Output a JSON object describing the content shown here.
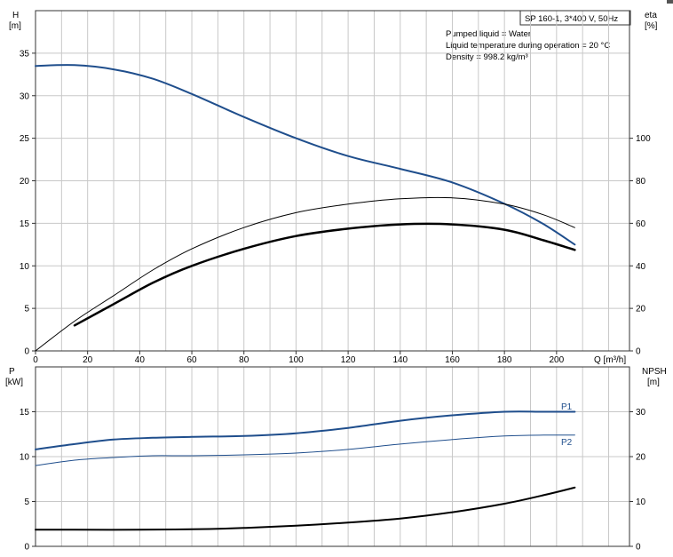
{
  "chart_data": [
    {
      "type": "line",
      "name": "upper",
      "left_axis": {
        "label_line1": "H",
        "label_line2": "[m]",
        "min": 0,
        "max": 40,
        "ticks": [
          0,
          5,
          10,
          15,
          20,
          25,
          30,
          35
        ]
      },
      "right_axis": {
        "label_line1": "eta",
        "label_line2": "[%]",
        "min": 0,
        "max": 160,
        "ticks": [
          0,
          20,
          40,
          60,
          80,
          100
        ]
      },
      "x_axis": {
        "label": "Q [m³/h]",
        "min": 0,
        "max": 228,
        "ticks": [
          0,
          20,
          40,
          60,
          80,
          100,
          120,
          140,
          160,
          180,
          200
        ]
      },
      "title_box": "SP 160-1, 3*400 V, 50Hz",
      "info": [
        "Pumped liquid = Water",
        "Liquid temperature during operation = 20 °C",
        "Density = 998.2 kg/m³"
      ],
      "grid": true,
      "series": [
        {
          "axis": "left",
          "color": "#1f4e8c",
          "width": 2,
          "x": [
            0,
            15,
            30,
            45,
            60,
            80,
            100,
            120,
            140,
            160,
            180,
            195,
            207
          ],
          "y": [
            33.5,
            33.6,
            33.1,
            32.0,
            30.2,
            27.5,
            25.0,
            22.9,
            21.4,
            19.8,
            17.3,
            14.9,
            12.5
          ]
        },
        {
          "axis": "right",
          "color": "#000000",
          "width": 1,
          "x": [
            0,
            15,
            30,
            45,
            60,
            80,
            100,
            120,
            140,
            160,
            180,
            195,
            207
          ],
          "y": [
            0,
            14,
            26,
            38,
            48,
            58,
            65,
            69,
            71.5,
            72,
            69,
            64,
            58
          ]
        },
        {
          "axis": "right",
          "color": "#000000",
          "width": 2.5,
          "x": [
            15,
            30,
            45,
            60,
            80,
            100,
            120,
            140,
            160,
            180,
            195,
            207
          ],
          "y": [
            12,
            22,
            32,
            40,
            48,
            54,
            57.5,
            59.5,
            59.5,
            57,
            52,
            47.5
          ]
        }
      ]
    },
    {
      "type": "line",
      "name": "lower",
      "left_axis": {
        "label_line1": "P",
        "label_line2": "[kW]",
        "min": 0,
        "max": 20,
        "ticks": [
          0,
          5,
          10,
          15
        ]
      },
      "right_axis": {
        "label_line1": "NPSH",
        "label_line2": "[m]",
        "min": 0,
        "max": 40,
        "ticks": [
          0,
          10,
          20,
          30
        ]
      },
      "x_axis": {
        "min": 0,
        "max": 228
      },
      "grid": true,
      "series": [
        {
          "name": "P1",
          "axis": "left",
          "color": "#1f4e8c",
          "width": 2,
          "x": [
            0,
            15,
            30,
            45,
            60,
            80,
            100,
            120,
            140,
            160,
            180,
            195,
            207
          ],
          "y": [
            10.8,
            11.4,
            11.9,
            12.1,
            12.2,
            12.3,
            12.6,
            13.2,
            14.0,
            14.6,
            15.0,
            15.0,
            15.0
          ]
        },
        {
          "name": "P2",
          "axis": "left",
          "color": "#1f4e8c",
          "width": 1,
          "x": [
            0,
            15,
            30,
            45,
            60,
            80,
            100,
            120,
            140,
            160,
            180,
            195,
            207
          ],
          "y": [
            9.0,
            9.6,
            9.9,
            10.1,
            10.1,
            10.2,
            10.4,
            10.8,
            11.4,
            11.9,
            12.3,
            12.4,
            12.4
          ]
        },
        {
          "axis": "right",
          "color": "#000000",
          "width": 2,
          "x": [
            0,
            15,
            40,
            60,
            80,
            100,
            120,
            140,
            160,
            180,
            195,
            207
          ],
          "y": [
            3.7,
            3.7,
            3.7,
            3.8,
            4.1,
            4.6,
            5.3,
            6.2,
            7.6,
            9.5,
            11.4,
            13.1
          ]
        }
      ]
    }
  ]
}
